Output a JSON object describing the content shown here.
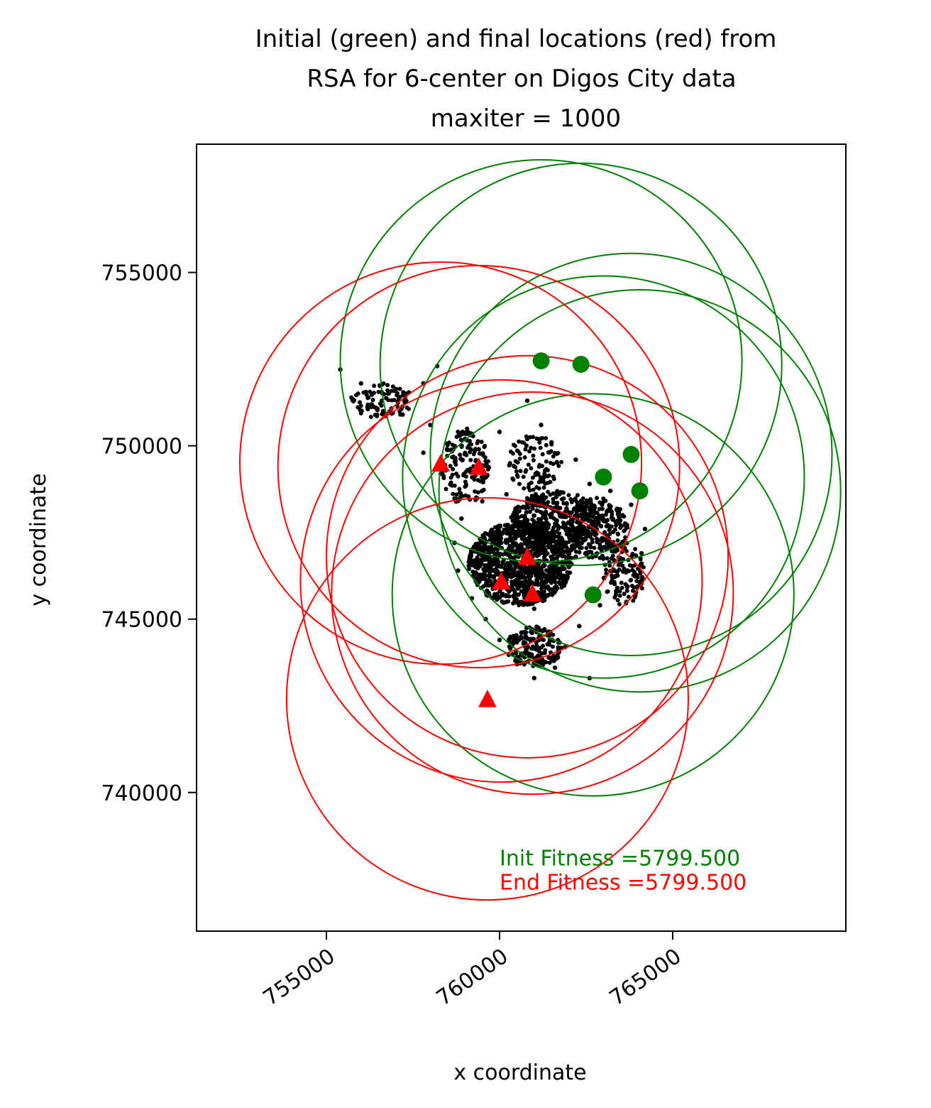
{
  "chart_data": {
    "type": "scatter",
    "title_lines": [
      "Initial (green) and final locations (red) from",
      "RSA for 6-center on Digos City data",
      "maxiter = 1000"
    ],
    "xlabel": "x coordinate",
    "ylabel": "y coordinate",
    "xlim": [
      751250,
      770000
    ],
    "ylim": [
      736000,
      758700
    ],
    "xticks": [
      755000,
      760000,
      765000
    ],
    "xtick_labels": [
      "755000",
      "760000",
      "765000"
    ],
    "yticks": [
      740000,
      745000,
      750000,
      755000
    ],
    "ytick_labels": [
      "740000",
      "745000",
      "750000",
      "755000"
    ],
    "radius": 5800,
    "colors": {
      "initial": "#008000",
      "final": "#ff0000",
      "data": "#000000"
    },
    "initial_centers": [
      {
        "x": 761200,
        "y": 752450
      },
      {
        "x": 762350,
        "y": 752350
      },
      {
        "x": 763800,
        "y": 749750
      },
      {
        "x": 763000,
        "y": 749100
      },
      {
        "x": 764050,
        "y": 748700
      },
      {
        "x": 762700,
        "y": 745700
      }
    ],
    "final_centers": [
      {
        "x": 758300,
        "y": 749500
      },
      {
        "x": 759400,
        "y": 749400
      },
      {
        "x": 760800,
        "y": 746800
      },
      {
        "x": 760050,
        "y": 746100
      },
      {
        "x": 760950,
        "y": 745750
      },
      {
        "x": 759650,
        "y": 742700
      }
    ],
    "data_cloud": {
      "description_points": [
        [
          755400,
          752200
        ],
        [
          756000,
          751800
        ],
        [
          756600,
          751300
        ],
        [
          757200,
          750900
        ],
        [
          757800,
          751800
        ],
        [
          758200,
          752300
        ],
        [
          758000,
          750600
        ],
        [
          757800,
          749800
        ],
        [
          758300,
          749200
        ],
        [
          759000,
          750200
        ],
        [
          759400,
          749900
        ],
        [
          760000,
          750400
        ],
        [
          760800,
          751300
        ],
        [
          761200,
          750600
        ],
        [
          761500,
          750100
        ],
        [
          762200,
          749600
        ],
        [
          762600,
          748900
        ],
        [
          763200,
          748700
        ],
        [
          763800,
          748300
        ],
        [
          764200,
          747600
        ],
        [
          764100,
          746900
        ],
        [
          763700,
          746400
        ],
        [
          763400,
          745900
        ],
        [
          762900,
          745400
        ],
        [
          762300,
          744800
        ],
        [
          761900,
          744200
        ],
        [
          761600,
          743600
        ],
        [
          761000,
          743300
        ],
        [
          760500,
          743700
        ],
        [
          760000,
          744400
        ],
        [
          759600,
          745000
        ],
        [
          759200,
          745600
        ],
        [
          758800,
          746400
        ],
        [
          758700,
          747200
        ],
        [
          758900,
          747900
        ],
        [
          759500,
          748400
        ],
        [
          760200,
          748600
        ],
        [
          760900,
          748400
        ],
        [
          761500,
          748000
        ],
        [
          762000,
          747600
        ],
        [
          762200,
          746800
        ],
        [
          761800,
          746000
        ],
        [
          761000,
          745300
        ],
        [
          760400,
          746000
        ],
        [
          759900,
          746800
        ],
        [
          760500,
          747500
        ],
        [
          761200,
          747100
        ],
        [
          762600,
          743300
        ]
      ]
    },
    "annotations": [
      {
        "text": "Init Fitness =5799.500",
        "color": "#008000",
        "x": 760000,
        "y": 738100
      },
      {
        "text": "End Fitness =5799.500",
        "color": "#ff0000",
        "x": 760000,
        "y": 737400
      }
    ]
  }
}
